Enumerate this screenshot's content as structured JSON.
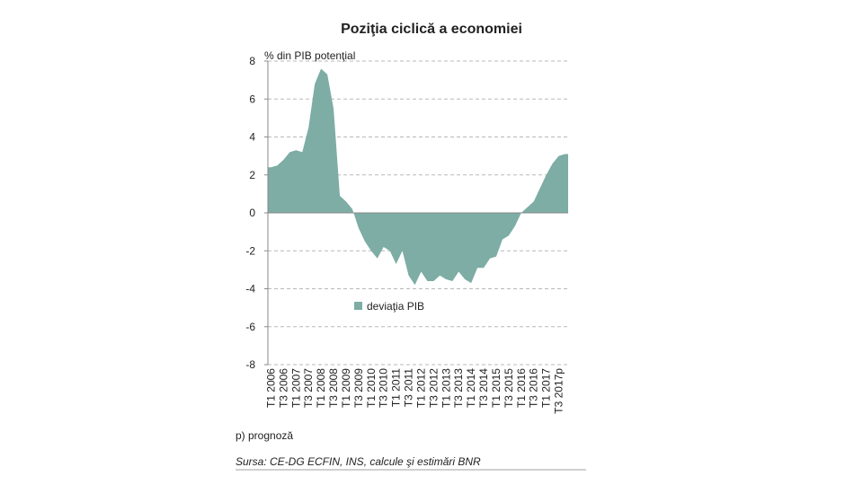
{
  "chart_data": {
    "type": "area",
    "title": "Poziţia ciclică a economiei",
    "ylabel": "% din PIB potenţial",
    "xlabel": "",
    "ylim": [
      -8,
      8
    ],
    "y_ticks": [
      8,
      6,
      4,
      2,
      0,
      -2,
      -4,
      -6,
      -8
    ],
    "grid": true,
    "legend_position": "inside-lower-middle",
    "series": [
      {
        "name": "deviaţia PIB",
        "color": "#7dada5",
        "points": [
          [
            "T1 2006",
            2.4
          ],
          [
            "T2 2006",
            2.5
          ],
          [
            "T3 2006",
            2.8
          ],
          [
            "T4 2006",
            3.2
          ],
          [
            "T1 2007",
            3.3
          ],
          [
            "T2 2007",
            3.2
          ],
          [
            "T3 2007",
            4.5
          ],
          [
            "T4 2007",
            6.8
          ],
          [
            "T1 2008",
            7.6
          ],
          [
            "T2 2008",
            7.3
          ],
          [
            "T3 2008",
            5.5
          ],
          [
            "T4 2008",
            0.9
          ],
          [
            "T1 2009",
            0.6
          ],
          [
            "T2 2009",
            0.2
          ],
          [
            "T3 2009",
            -0.8
          ],
          [
            "T4 2009",
            -1.5
          ],
          [
            "T1 2010",
            -2.0
          ],
          [
            "T2 2010",
            -2.4
          ],
          [
            "T3 2010",
            -1.8
          ],
          [
            "T4 2010",
            -2.0
          ],
          [
            "T1 2011",
            -2.7
          ],
          [
            "T2 2011",
            -2.0
          ],
          [
            "T3 2011",
            -3.3
          ],
          [
            "T4 2011",
            -3.8
          ],
          [
            "T1 2012",
            -3.1
          ],
          [
            "T2 2012",
            -3.6
          ],
          [
            "T3 2012",
            -3.6
          ],
          [
            "T4 2012",
            -3.3
          ],
          [
            "T1 2013",
            -3.5
          ],
          [
            "T2 2013",
            -3.6
          ],
          [
            "T3 2013",
            -3.1
          ],
          [
            "T4 2013",
            -3.5
          ],
          [
            "T1 2014",
            -3.7
          ],
          [
            "T2 2014",
            -2.9
          ],
          [
            "T3 2014",
            -2.9
          ],
          [
            "T4 2014",
            -2.4
          ],
          [
            "T1 2015",
            -2.3
          ],
          [
            "T2 2015",
            -1.4
          ],
          [
            "T3 2015",
            -1.2
          ],
          [
            "T4 2015",
            -0.7
          ],
          [
            "T1 2016",
            0.0
          ],
          [
            "T2 2016",
            0.3
          ],
          [
            "T3 2016",
            0.6
          ],
          [
            "T4 2016",
            1.3
          ],
          [
            "T1 2017",
            2.0
          ],
          [
            "T2 2017",
            2.6
          ],
          [
            "T3 2017p",
            3.0
          ],
          [
            "T4 2017p",
            3.1
          ]
        ]
      }
    ],
    "x_tick_labels": [
      "T1 2006",
      "T3 2006",
      "T1 2007",
      "T3 2007",
      "T1 2008",
      "T3 2008",
      "T1 2009",
      "T3 2009",
      "T1 2010",
      "T3 2010",
      "T1 2011",
      "T3 2011",
      "T1 2012",
      "T3 2012",
      "T1 2013",
      "T3 2013",
      "T1 2014",
      "T3 2014",
      "T1 2015",
      "T3 2015",
      "T1 2016",
      "T3 2016",
      "T1 2017",
      "T3 2017p"
    ],
    "footnote": "p) prognoză",
    "source": "Sursa: CE-DG ECFIN, INS, calcule şi estimări BNR"
  }
}
